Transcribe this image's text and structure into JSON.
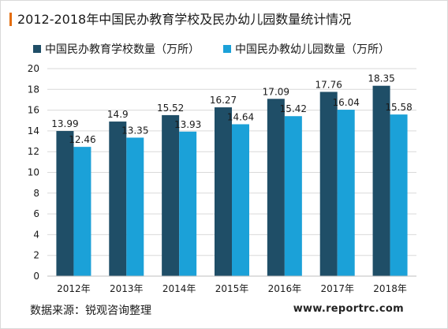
{
  "title": "2012-2018年中国民办教育学校及民办幼儿园数量统计情况",
  "source": "数据来源：锐观咨询整理",
  "website": "www.reportrc.com",
  "colors": {
    "accent": "#e46c0a",
    "series1": "#1f4e67",
    "series2": "#1ba1d8",
    "grid": "#d9d9d9",
    "text": "#1a1a1a"
  },
  "chart_data": {
    "type": "bar",
    "categories": [
      "2012年",
      "2013年",
      "2014年",
      "2015年",
      "2016年",
      "2017年",
      "2018年"
    ],
    "series": [
      {
        "name": "中国民办教育学校数量（万所）",
        "values": [
          13.99,
          14.9,
          15.52,
          16.27,
          17.09,
          17.76,
          18.35
        ],
        "labels": [
          "13.99",
          "14.9",
          "15.52",
          "16.27",
          "17.09",
          "17.76",
          "18.35"
        ]
      },
      {
        "name": "中国民办教幼儿园数量（万所）",
        "values": [
          12.46,
          13.35,
          13.93,
          14.64,
          15.42,
          16.04,
          15.58
        ],
        "labels": [
          "12.46",
          "13.35",
          "13.93",
          "14.64",
          "15.42",
          "16.04",
          "15.58"
        ]
      }
    ],
    "ylim": [
      0,
      20
    ],
    "yticks": [
      0,
      2,
      4,
      6,
      8,
      10,
      12,
      14,
      16,
      18,
      20
    ],
    "grid": true,
    "legend": "top"
  }
}
